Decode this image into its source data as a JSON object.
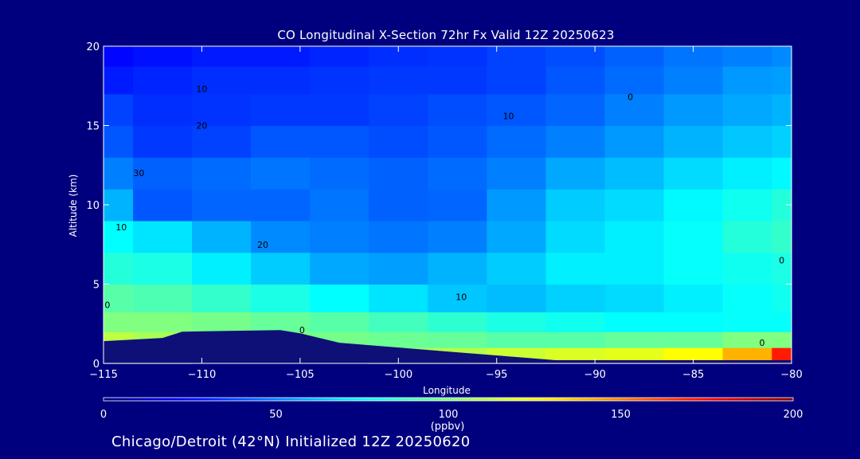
{
  "chart_data": {
    "type": "heatmap",
    "title": "CO Longitudinal X-Section 72hr  Fx Valid 12Z 20250623",
    "xlabel": "Longitude",
    "ylabel": "Altitude (km)",
    "xlim": [
      -115,
      -80
    ],
    "ylim": [
      0,
      20
    ],
    "x_ticks": [
      -115,
      -110,
      -105,
      -100,
      -95,
      -90,
      -85,
      -80
    ],
    "y_ticks": [
      0,
      5,
      10,
      15,
      20
    ],
    "colorbar": {
      "label": "(ppbv)",
      "range": [
        0,
        200
      ],
      "ticks": [
        0,
        50,
        100,
        150,
        200
      ],
      "colormap": "jet"
    },
    "x": [
      -115,
      -112,
      -109,
      -106,
      -103,
      -100,
      -97,
      -94,
      -91,
      -88,
      -85,
      -82,
      -80
    ],
    "y": [
      0.5,
      1.5,
      2.5,
      4,
      6,
      8,
      10,
      12,
      14,
      16,
      18,
      19.5
    ],
    "z": [
      [
        105,
        110,
        0,
        0,
        0,
        105,
        110,
        115,
        118,
        120,
        125,
        140,
        170
      ],
      [
        112,
        108,
        105,
        100,
        98,
        96,
        95,
        92,
        92,
        95,
        95,
        100,
        100
      ],
      [
        100,
        100,
        98,
        95,
        92,
        88,
        84,
        80,
        78,
        75,
        75,
        76,
        76
      ],
      [
        92,
        90,
        85,
        80,
        75,
        70,
        64,
        62,
        66,
        68,
        72,
        76,
        78
      ],
      [
        82,
        80,
        72,
        65,
        58,
        56,
        60,
        65,
        72,
        72,
        76,
        78,
        80
      ],
      [
        75,
        70,
        60,
        52,
        50,
        48,
        50,
        58,
        68,
        72,
        76,
        82,
        85
      ],
      [
        60,
        42,
        45,
        45,
        48,
        44,
        45,
        55,
        65,
        68,
        74,
        78,
        82
      ],
      [
        50,
        44,
        46,
        48,
        46,
        44,
        46,
        50,
        58,
        62,
        68,
        72,
        74
      ],
      [
        42,
        36,
        38,
        42,
        42,
        40,
        42,
        46,
        50,
        55,
        60,
        64,
        66
      ],
      [
        38,
        34,
        35,
        36,
        36,
        38,
        40,
        42,
        45,
        50,
        55,
        58,
        60
      ],
      [
        30,
        32,
        34,
        34,
        35,
        36,
        36,
        38,
        42,
        46,
        50,
        55,
        56
      ],
      [
        26,
        28,
        30,
        30,
        32,
        34,
        35,
        38,
        40,
        44,
        48,
        50,
        52
      ]
    ],
    "terrain_top_km": [
      [
        -115,
        1.4
      ],
      [
        -112,
        1.6
      ],
      [
        -111,
        2.0
      ],
      [
        -106,
        2.1
      ],
      [
        -105,
        1.9
      ],
      [
        -103,
        1.3
      ],
      [
        -100,
        1.0
      ],
      [
        -97,
        0.7
      ],
      [
        -94,
        0.4
      ],
      [
        -92,
        0.2
      ],
      [
        -80,
        0.2
      ]
    ],
    "contour_labels": [
      {
        "text": "10",
        "x": -110,
        "y": 17.3
      },
      {
        "text": "20",
        "x": -110,
        "y": 15.0
      },
      {
        "text": "10",
        "x": -94.4,
        "y": 15.6
      },
      {
        "text": "0",
        "x": -88.2,
        "y": 16.8
      },
      {
        "text": "30",
        "x": -113.2,
        "y": 12.0
      },
      {
        "text": "10",
        "x": -114.1,
        "y": 8.6
      },
      {
        "text": "20",
        "x": -106.9,
        "y": 7.5
      },
      {
        "text": "10",
        "x": -96.8,
        "y": 4.2
      },
      {
        "text": "0",
        "x": -114.8,
        "y": 3.7
      },
      {
        "text": "0",
        "x": -104.9,
        "y": 2.1
      },
      {
        "text": "0",
        "x": -80.5,
        "y": 6.5
      },
      {
        "text": "0",
        "x": -81.5,
        "y": 1.3
      }
    ]
  },
  "footer_text": "Chicago/Detroit (42°N) Initialized 12Z 20250620",
  "colors": {
    "background": "#00007f",
    "terrain": "#0f0f78",
    "axis": "#ffffff",
    "contour": "#000000"
  }
}
